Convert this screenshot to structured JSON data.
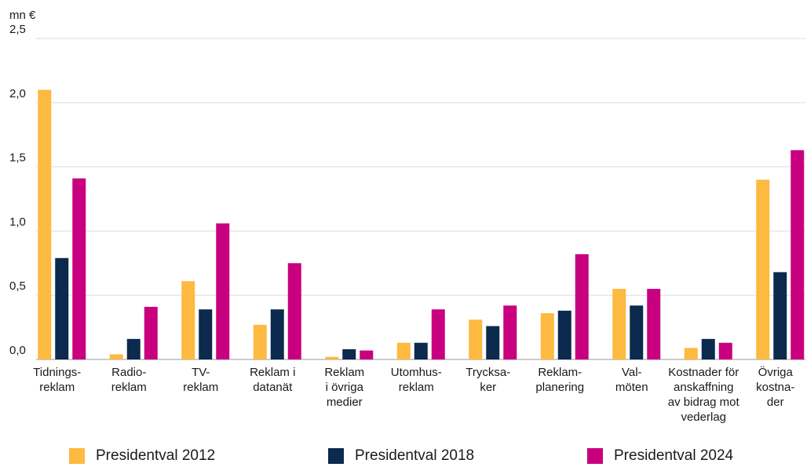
{
  "chart_data": {
    "type": "bar",
    "y_axis_label": "mn €",
    "categories": [
      "Tidnings-\nreklam",
      "Radio-\nreklam",
      "TV-\nreklam",
      "Reklam i\ndatanät",
      "Reklam\ni övriga\nmedier",
      "Utomhus-\nreklam",
      "Trycksa-\nker",
      "Reklam-\nplanering",
      "Val-\nmöten",
      "Kostnader för\nanskaffning\nav bidrag mot\nvederlag",
      "Övriga\nkostna-\nder"
    ],
    "series": [
      {
        "name": "Presidentval 2012",
        "color": "#fdb940",
        "values": [
          2.1,
          0.04,
          0.61,
          0.27,
          0.02,
          0.13,
          0.31,
          0.36,
          0.55,
          0.09,
          1.4
        ]
      },
      {
        "name": "Presidentval 2018",
        "color": "#0c2a4d",
        "values": [
          0.79,
          0.16,
          0.39,
          0.39,
          0.08,
          0.13,
          0.26,
          0.38,
          0.42,
          0.16,
          0.68
        ]
      },
      {
        "name": "Presidentval 2024",
        "color": "#c8007f",
        "values": [
          1.41,
          0.41,
          1.06,
          0.75,
          0.07,
          0.39,
          0.42,
          0.82,
          0.55,
          0.13,
          1.63
        ]
      }
    ],
    "ylim": [
      0,
      2.5
    ],
    "yticks": [
      {
        "value": 0,
        "label": "0,0"
      },
      {
        "value": 0.5,
        "label": "0,5"
      },
      {
        "value": 1,
        "label": "1,0"
      },
      {
        "value": 1.5,
        "label": "1,5"
      },
      {
        "value": 2,
        "label": "2,0"
      },
      {
        "value": 2.5,
        "label": "2,5"
      }
    ],
    "grid": true
  }
}
